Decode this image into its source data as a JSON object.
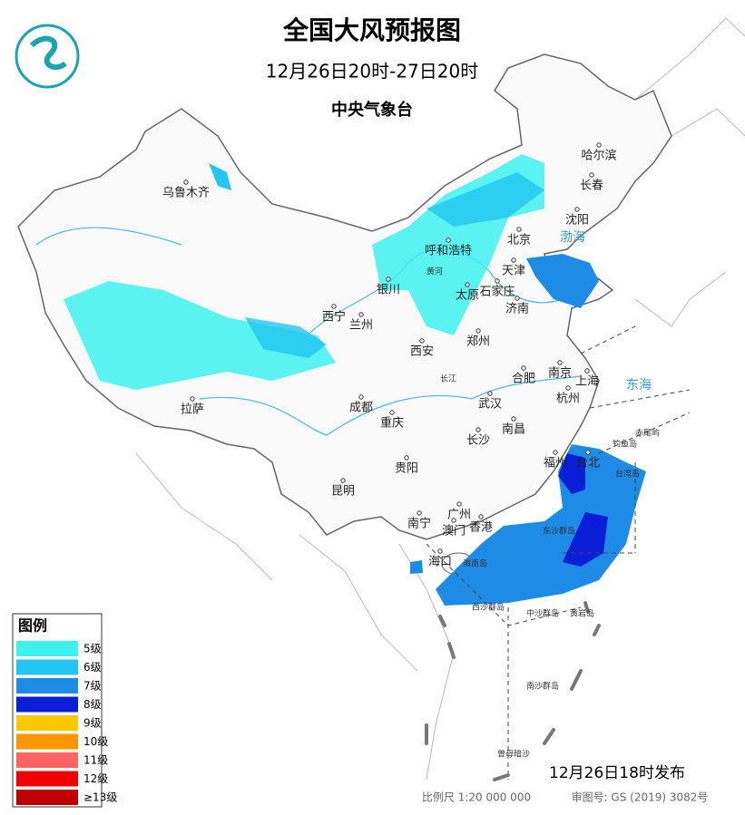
{
  "header": {
    "title": "全国大风预报图",
    "time_range": "12月26日20时-27日20时",
    "issuer": "中央气象台"
  },
  "legend": {
    "title": "图例",
    "items": [
      {
        "label": "5级",
        "color": "#3ef0f0"
      },
      {
        "label": "6级",
        "color": "#22c6f0"
      },
      {
        "label": "7级",
        "color": "#1e8ce6"
      },
      {
        "label": "8级",
        "color": "#0a1ed8"
      },
      {
        "label": "9级",
        "color": "#ffc800"
      },
      {
        "label": "10级",
        "color": "#ff9600"
      },
      {
        "label": "11级",
        "color": "#ff6464"
      },
      {
        "label": "12级",
        "color": "#f00000"
      },
      {
        "label": "≥13级",
        "color": "#c00000"
      }
    ]
  },
  "cities": [
    "乌鲁木齐",
    "哈尔滨",
    "长春",
    "沈阳",
    "呼和浩特",
    "北京",
    "天津",
    "银川",
    "太原",
    "石家庄",
    "济南",
    "西宁",
    "兰州",
    "郑州",
    "西安",
    "南京",
    "合肥",
    "上海",
    "杭州",
    "成都",
    "武汉",
    "拉萨",
    "重庆",
    "南昌",
    "长沙",
    "贵阳",
    "福州",
    "台北",
    "昆明",
    "广州",
    "南宁",
    "澳门",
    "香港",
    "海口"
  ],
  "seas": [
    "渤海",
    "东海"
  ],
  "islands": [
    "海南岛",
    "台湾岛",
    "钓鱼岛",
    "赤尾屿",
    "东沙群岛",
    "西沙群岛",
    "中沙群岛",
    "黄岩岛",
    "南沙群岛",
    "曾母暗沙"
  ],
  "rivers": [
    "长江",
    "黄河"
  ],
  "footer": {
    "issued": "12月26日18时发布",
    "scale": "比例尺 1:20 000 000",
    "map_number": "审图号: GS (2019) 3082号"
  }
}
